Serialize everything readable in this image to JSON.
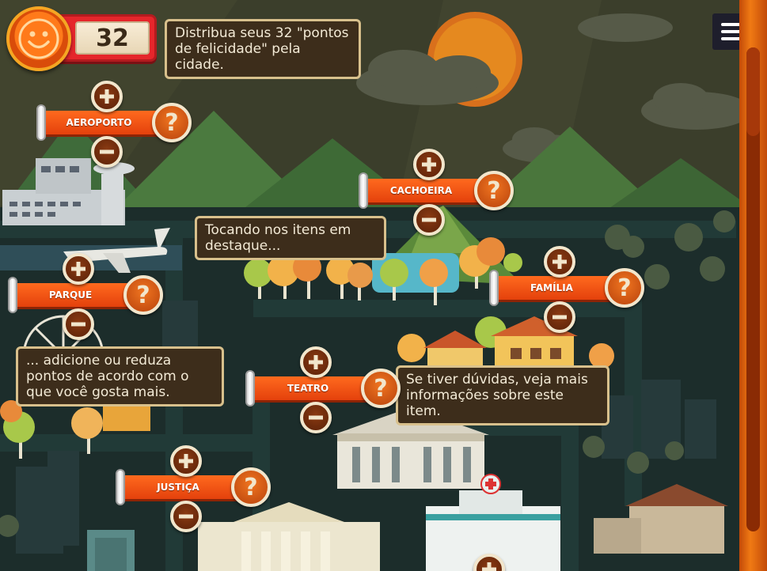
{
  "score": {
    "value": "32"
  },
  "instructions": {
    "intro": "Distribua seus 32 \"pontos de felicidade\" pela cidade.",
    "tap": "Tocando nos itens em destaque...",
    "adjust": "... adicione ou reduza pontos de acordo com o que você gosta mais.",
    "help": "Se tiver dúvidas, veja mais informações sobre este item."
  },
  "items": [
    {
      "label": "AEROPORTO"
    },
    {
      "label": "CACHOEIRA"
    },
    {
      "label": "PARQUE"
    },
    {
      "label": "FAMÍLIA"
    },
    {
      "label": "TEATRO"
    },
    {
      "label": "JUSTIÇA"
    }
  ],
  "icons": {
    "help": "?",
    "menu": "menu-icon",
    "smiley": "smiley-icon"
  },
  "colors": {
    "accent": "#e4410c",
    "panel": "#3d2d1b",
    "border": "#d8c08c",
    "sky": "#3a3f2a"
  }
}
